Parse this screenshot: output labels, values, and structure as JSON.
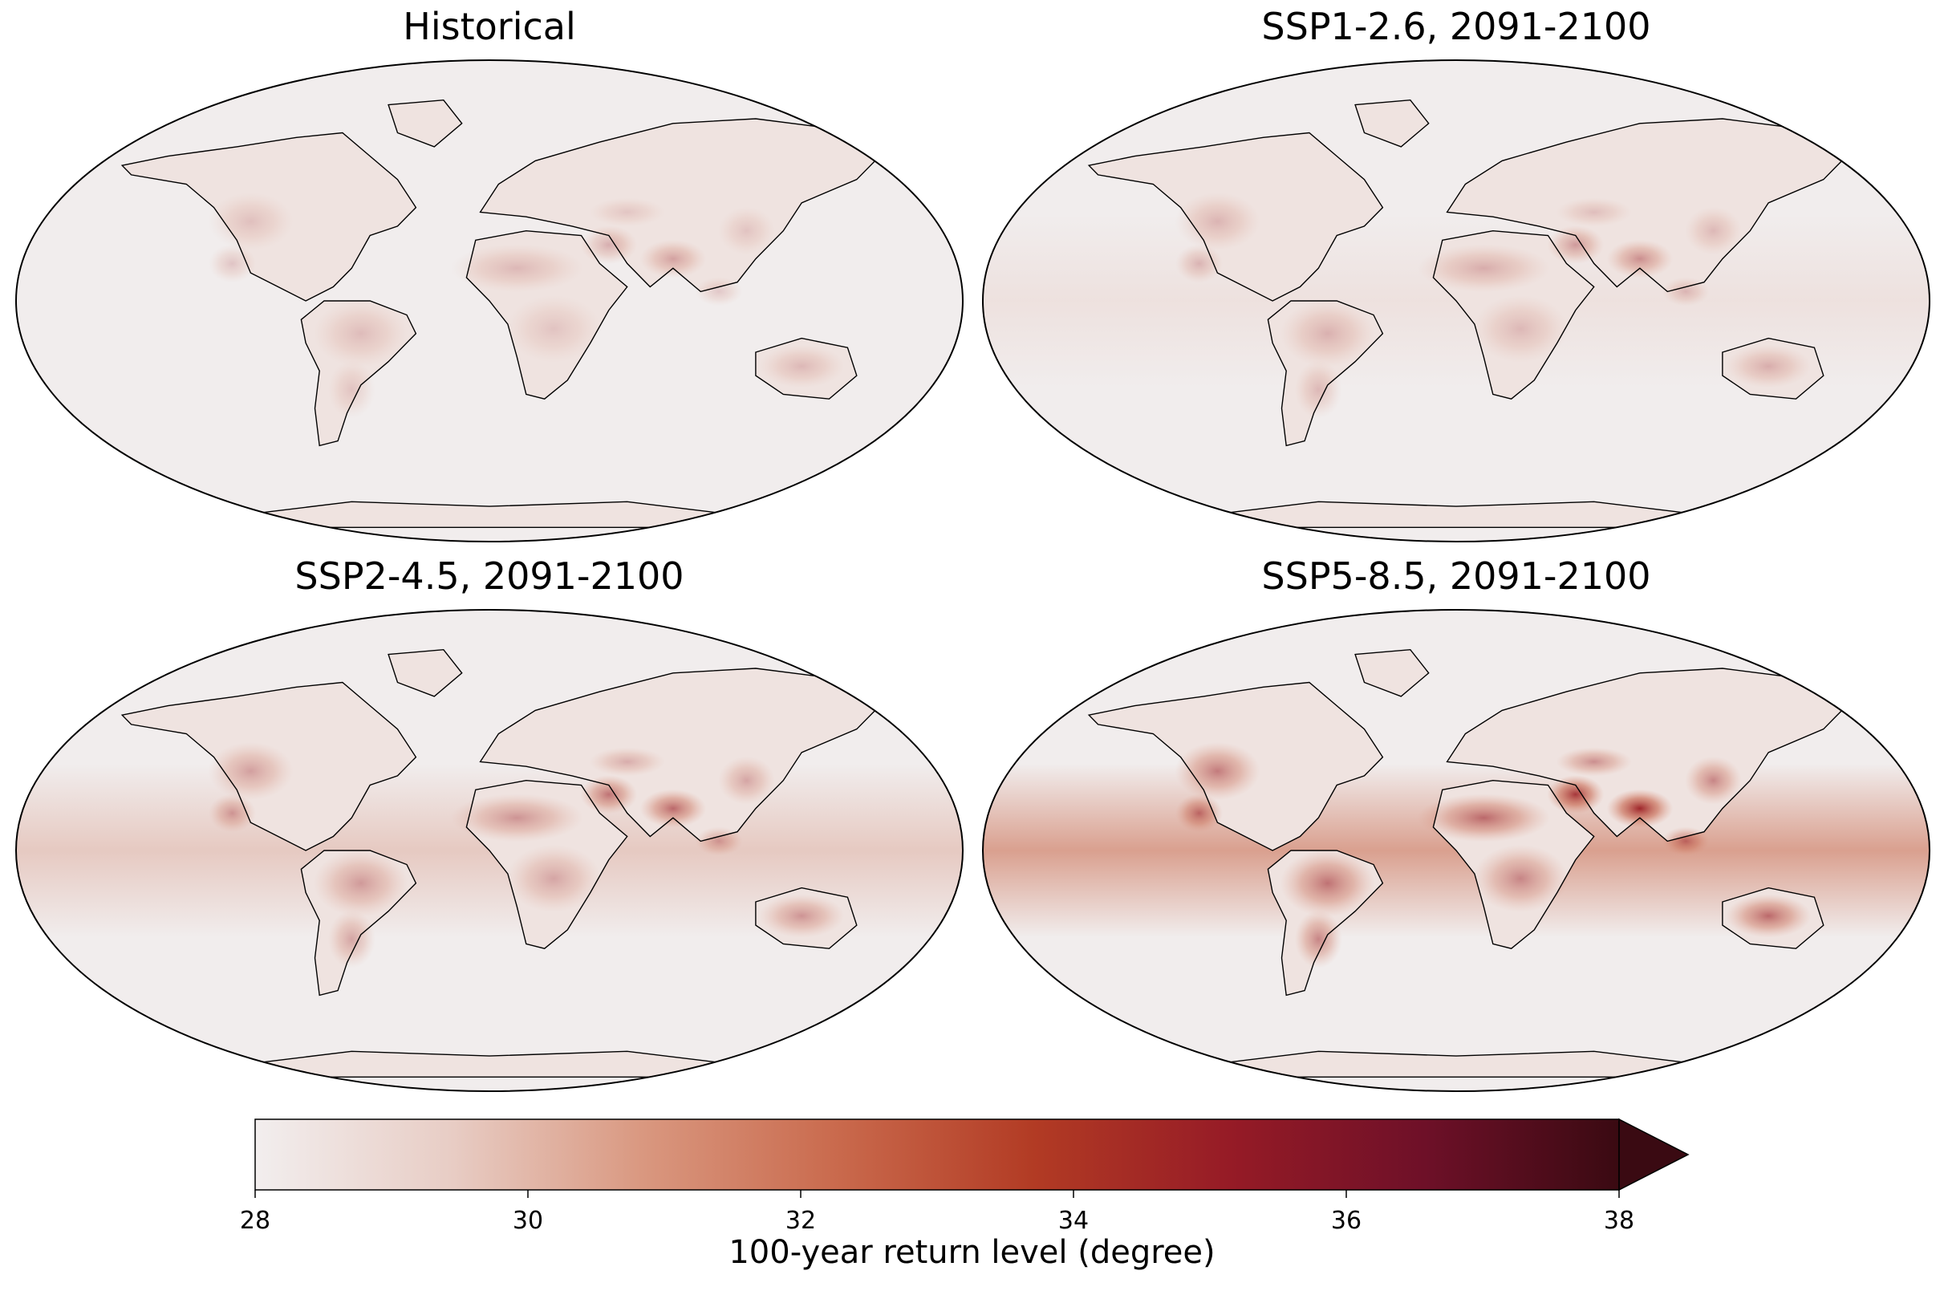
{
  "panels": [
    {
      "id": "historical",
      "title": "Historical",
      "intensity": 0.35
    },
    {
      "id": "ssp126",
      "title": "SSP1-2.6, 2091-2100",
      "intensity": 0.45
    },
    {
      "id": "ssp245",
      "title": "SSP2-4.5, 2091-2100",
      "intensity": 0.65
    },
    {
      "id": "ssp585",
      "title": "SSP5-8.5, 2091-2100",
      "intensity": 1.0
    }
  ],
  "colorbar": {
    "label": "100-year return level (degree)",
    "ticks": [
      "28",
      "30",
      "32",
      "34",
      "36",
      "38"
    ],
    "min": 28,
    "max": 38,
    "extend": "max",
    "colors": [
      "#f2eeee",
      "#e8cdc5",
      "#d9977f",
      "#c9694c",
      "#b23b24",
      "#961b26",
      "#6e1028",
      "#3a0a12"
    ]
  },
  "ocean_color": "#f1eded",
  "coast_color": "#000000"
}
